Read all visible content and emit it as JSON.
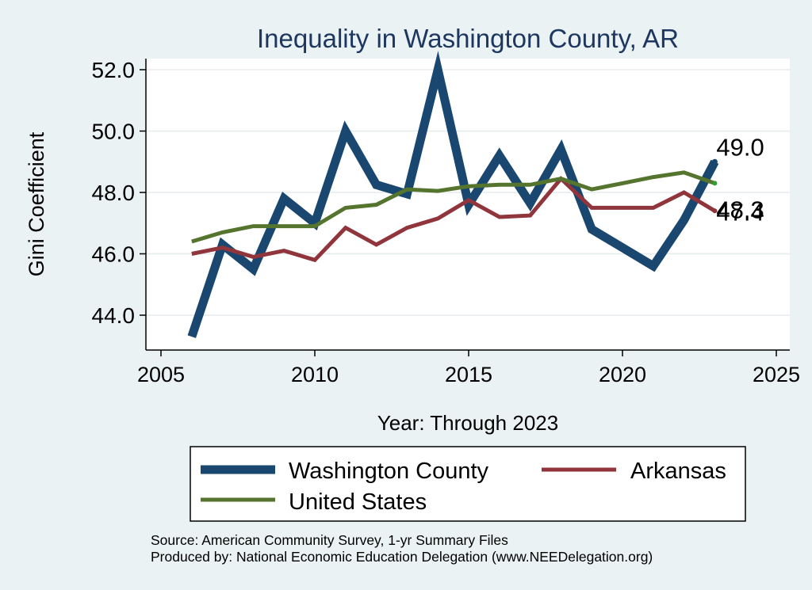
{
  "chart_data": {
    "type": "line",
    "title": "Inequality in Washington County, AR",
    "xlabel": "Year: Through 2023",
    "ylabel": "Gini Coefficient",
    "xlim": [
      2005,
      2025
    ],
    "ylim": [
      42.8,
      52.3
    ],
    "x_ticks": [
      2005,
      2010,
      2015,
      2020,
      2025
    ],
    "y_ticks": [
      44.0,
      46.0,
      48.0,
      50.0,
      52.0
    ],
    "x_tick_labels": [
      "2005",
      "2010",
      "2015",
      "2020",
      "2025"
    ],
    "y_tick_labels": [
      "44.0",
      "46.0",
      "48.0",
      "50.0",
      "52.0"
    ],
    "grid": true,
    "legend_position": "bottom",
    "x": [
      2006,
      2007,
      2008,
      2009,
      2010,
      2011,
      2012,
      2013,
      2014,
      2015,
      2016,
      2017,
      2018,
      2019,
      2020,
      2021,
      2022,
      2023
    ],
    "series": [
      {
        "name": "Washington County",
        "color": "#1a476f",
        "values": [
          43.3,
          46.3,
          45.5,
          47.8,
          47.0,
          50.0,
          48.25,
          47.95,
          52.0,
          47.6,
          49.2,
          47.65,
          49.4,
          46.8,
          46.2,
          45.6,
          47.1,
          49.0
        ],
        "end_label": "49.0"
      },
      {
        "name": "Arkansas",
        "color": "#90353b",
        "values": [
          46.0,
          46.2,
          45.9,
          46.1,
          45.8,
          46.85,
          46.3,
          46.85,
          47.15,
          47.75,
          47.2,
          47.25,
          48.45,
          47.5,
          47.5,
          47.5,
          48.0,
          47.4
        ],
        "end_label": "47.4"
      },
      {
        "name": "United States",
        "color": "#55752f",
        "values": [
          46.4,
          46.7,
          46.9,
          46.9,
          46.9,
          47.5,
          47.6,
          48.1,
          48.05,
          48.2,
          48.25,
          48.25,
          48.45,
          48.1,
          48.3,
          48.5,
          48.65,
          48.3
        ],
        "end_label": "48.3"
      }
    ],
    "source_note": "Source: American Community Survey, 1-yr Summary Files",
    "producer_note": "Produced by: National Economic Education Delegation (www.NEEDelegation.org)"
  }
}
